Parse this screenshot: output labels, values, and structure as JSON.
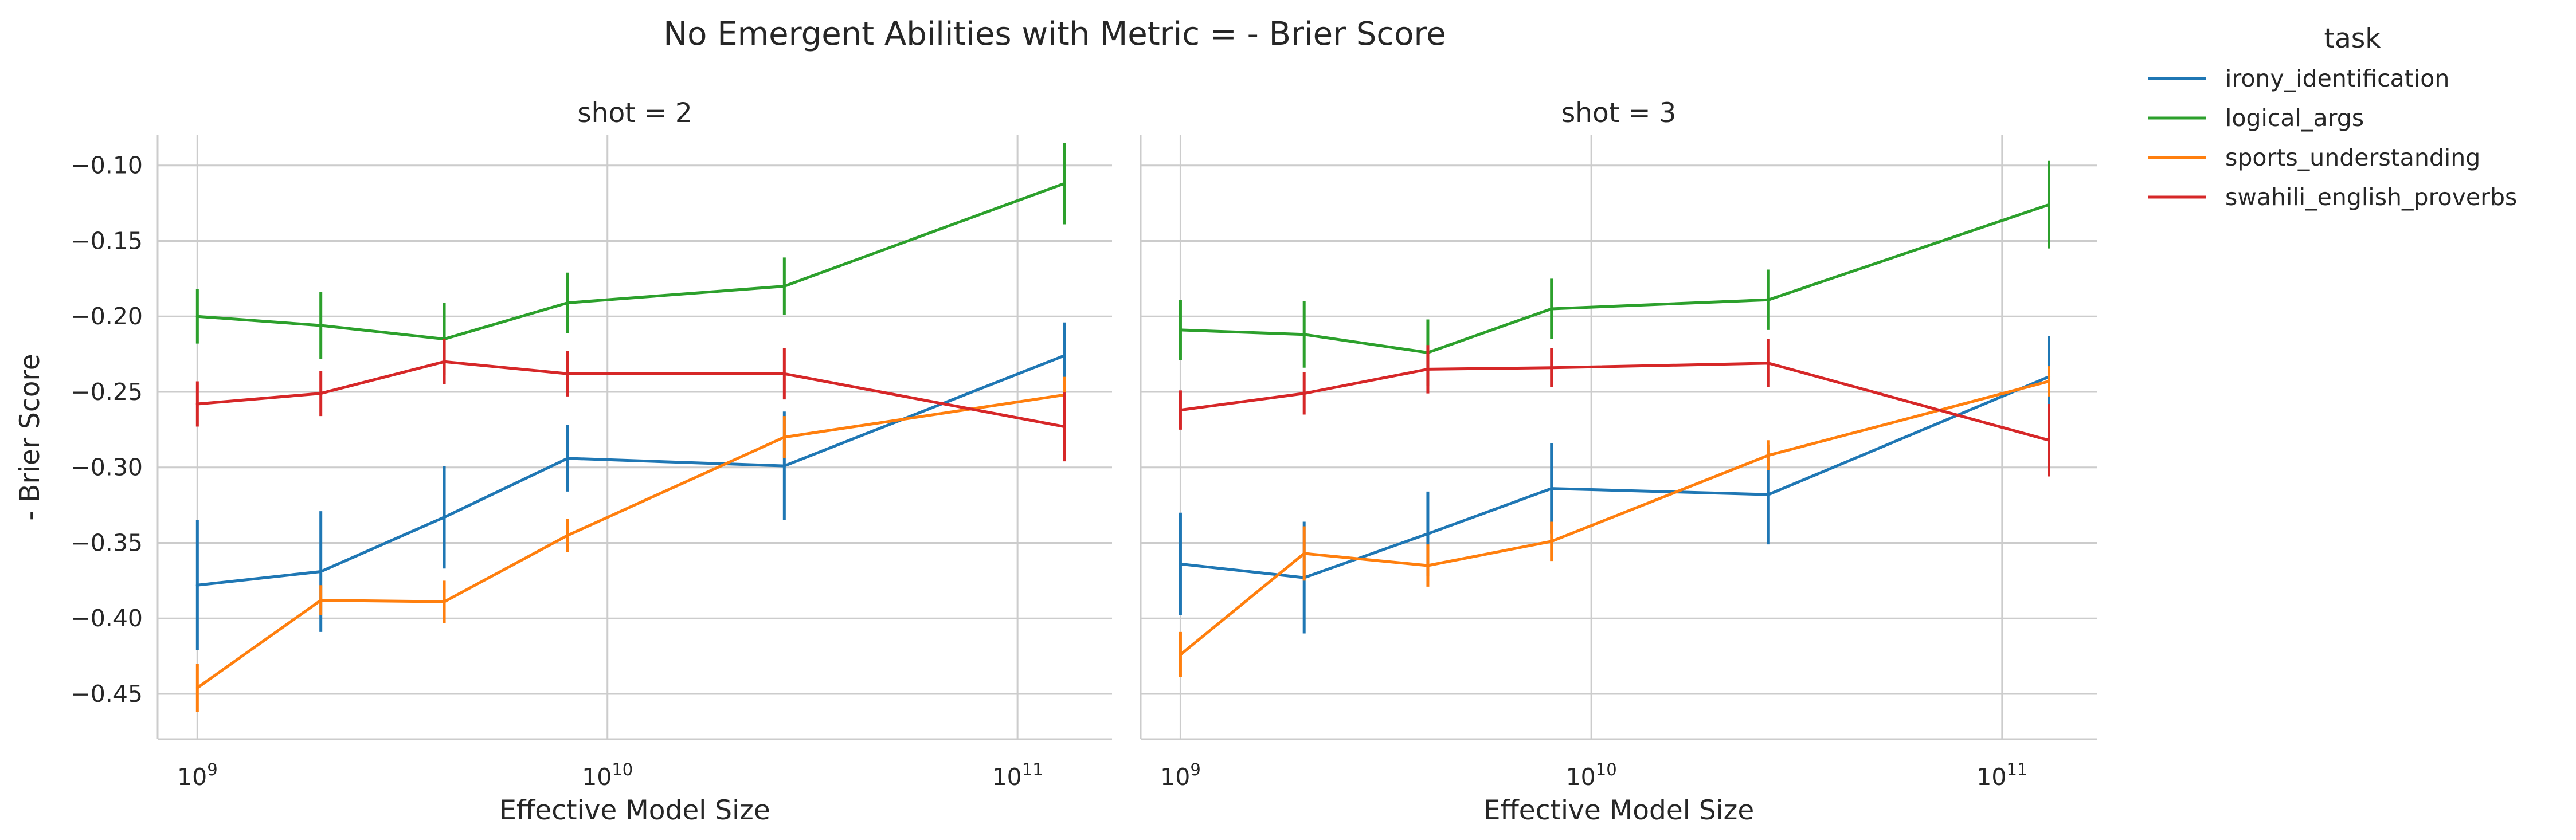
{
  "suptitle": "No Emergent Abilities with Metric = - Brier Score",
  "legend": {
    "title": "task",
    "items": [
      {
        "label": "irony_identification",
        "color": "#1f77b4"
      },
      {
        "label": "logical_args",
        "color": "#2ca02c"
      },
      {
        "label": "sports_understanding",
        "color": "#ff7f0e"
      },
      {
        "label": "swahili_english_proverbs",
        "color": "#d62728"
      }
    ]
  },
  "chart_data": [
    {
      "type": "line",
      "title": "shot = 2",
      "xlabel": "Effective Model Size",
      "ylabel": "- Brier Score",
      "xscale": "log",
      "xlim": [
        800000000,
        170000000000
      ],
      "ylim": [
        -0.48,
        -0.08
      ],
      "x_ticks": [
        1000000000,
        10000000000,
        100000000000
      ],
      "x_tick_labels": [
        {
          "base": "10",
          "exp": "9"
        },
        {
          "base": "10",
          "exp": "10"
        },
        {
          "base": "10",
          "exp": "11"
        }
      ],
      "y_ticks": [
        -0.45,
        -0.4,
        -0.35,
        -0.3,
        -0.25,
        -0.2,
        -0.15,
        -0.1
      ],
      "y_tick_labels": [
        "−0.45",
        "−0.40",
        "−0.35",
        "−0.30",
        "−0.25",
        "−0.20",
        "−0.15",
        "−0.10"
      ],
      "grid": true,
      "x": [
        1000000000,
        2000000000,
        4000000000,
        8000000000,
        27000000000,
        130000000000
      ],
      "series": [
        {
          "name": "irony_identification",
          "color": "#1f77b4",
          "values": [
            -0.378,
            -0.369,
            -0.333,
            -0.294,
            -0.299,
            -0.226
          ],
          "err": [
            0.043,
            0.04,
            0.034,
            0.022,
            0.036,
            0.022
          ]
        },
        {
          "name": "logical_args",
          "color": "#2ca02c",
          "values": [
            -0.2,
            -0.206,
            -0.215,
            -0.191,
            -0.18,
            -0.112
          ],
          "err": [
            0.018,
            0.022,
            0.024,
            0.02,
            0.019,
            0.027
          ]
        },
        {
          "name": "sports_understanding",
          "color": "#ff7f0e",
          "values": [
            -0.446,
            -0.388,
            -0.389,
            -0.345,
            -0.28,
            -0.252
          ],
          "err": [
            0.016,
            0.01,
            0.014,
            0.011,
            0.014,
            0.012
          ]
        },
        {
          "name": "swahili_english_proverbs",
          "color": "#d62728",
          "values": [
            -0.258,
            -0.251,
            -0.23,
            -0.238,
            -0.238,
            -0.273
          ],
          "err": [
            0.015,
            0.015,
            0.015,
            0.015,
            0.017,
            0.023
          ]
        }
      ]
    },
    {
      "type": "line",
      "title": "shot = 3",
      "xlabel": "Effective Model Size",
      "ylabel": "",
      "xscale": "log",
      "xlim": [
        800000000,
        170000000000
      ],
      "ylim": [
        -0.48,
        -0.08
      ],
      "x_ticks": [
        1000000000,
        10000000000,
        100000000000
      ],
      "x_tick_labels": [
        {
          "base": "10",
          "exp": "9"
        },
        {
          "base": "10",
          "exp": "10"
        },
        {
          "base": "10",
          "exp": "11"
        }
      ],
      "y_ticks": [
        -0.45,
        -0.4,
        -0.35,
        -0.3,
        -0.25,
        -0.2,
        -0.15,
        -0.1
      ],
      "y_tick_labels": [],
      "grid": true,
      "x": [
        1000000000,
        2000000000,
        4000000000,
        8000000000,
        27000000000,
        130000000000
      ],
      "series": [
        {
          "name": "irony_identification",
          "color": "#1f77b4",
          "values": [
            -0.364,
            -0.373,
            -0.344,
            -0.314,
            -0.318,
            -0.24
          ],
          "err": [
            0.034,
            0.037,
            0.028,
            0.03,
            0.033,
            0.027
          ]
        },
        {
          "name": "logical_args",
          "color": "#2ca02c",
          "values": [
            -0.209,
            -0.212,
            -0.224,
            -0.195,
            -0.189,
            -0.126
          ],
          "err": [
            0.02,
            0.022,
            0.022,
            0.02,
            0.02,
            0.029
          ]
        },
        {
          "name": "sports_understanding",
          "color": "#ff7f0e",
          "values": [
            -0.424,
            -0.357,
            -0.365,
            -0.349,
            -0.292,
            -0.243
          ],
          "err": [
            0.015,
            0.018,
            0.014,
            0.013,
            0.01,
            0.01
          ]
        },
        {
          "name": "swahili_english_proverbs",
          "color": "#d62728",
          "values": [
            -0.262,
            -0.251,
            -0.235,
            -0.234,
            -0.231,
            -0.282
          ],
          "err": [
            0.013,
            0.014,
            0.016,
            0.013,
            0.016,
            0.024
          ]
        }
      ]
    }
  ]
}
